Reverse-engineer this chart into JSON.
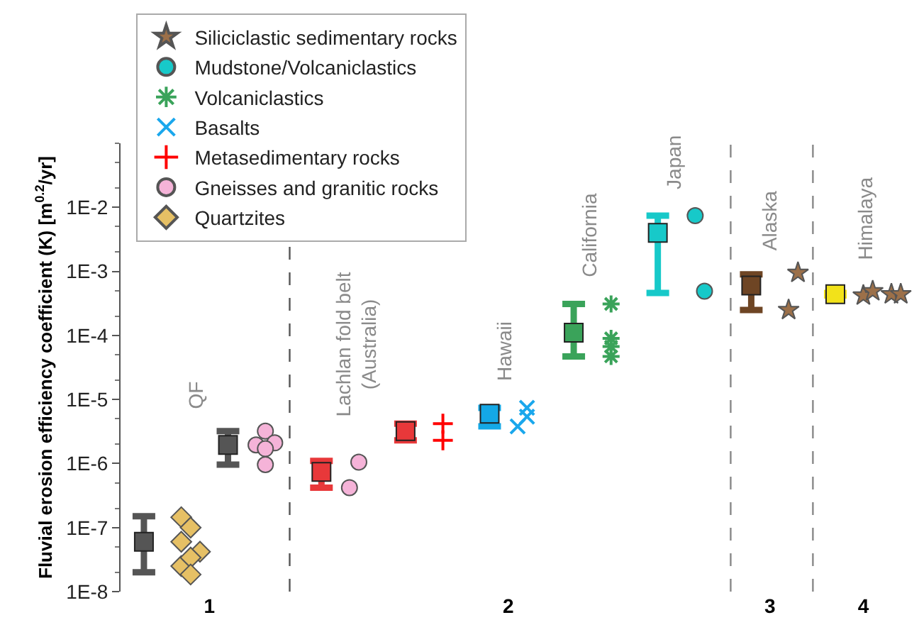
{
  "chart_data": {
    "type": "scatter",
    "ylabel": "Fluvial erosion efficiency coefficient (K) [m$^{0.2}$/yr]",
    "log": "y",
    "grid": false,
    "legend": "top left",
    "categories": [
      null,
      null,
      null,
      null,
      null,
      null,
      null,
      null,
      null,
      "1",
      null,
      null,
      null,
      null,
      null,
      null,
      null,
      null,
      null,
      null,
      null,
      null,
      null,
      null,
      null,
      null,
      null,
      null,
      null,
      null,
      null,
      null,
      null,
      null,
      null,
      null,
      null,
      null,
      null,
      null,
      null,
      "2",
      null,
      null,
      null,
      null,
      null,
      null,
      null,
      null,
      null,
      null,
      null,
      null,
      null,
      null,
      null,
      null,
      null,
      null,
      null,
      null,
      null,
      null,
      null,
      null,
      null,
      null,
      null,
      "3",
      null,
      null,
      null,
      null,
      null,
      null,
      null,
      null,
      null,
      "4",
      null,
      null,
      null,
      null,
      null
    ],
    "ylim": [
      1e-08,
      0.1
    ],
    "yticks": [
      {
        "value": 1e-08,
        "label": "1E-8"
      },
      {
        "value": 1e-07,
        "label": "1E-7"
      },
      {
        "value": 1e-06,
        "label": "1E-6"
      },
      {
        "value": 1e-05,
        "label": "1E-5"
      },
      {
        "value": 0.0001,
        "label": "1E-4"
      },
      {
        "value": 0.001,
        "label": "1E-3"
      },
      {
        "value": 0.01,
        "label": "1E-2"
      }
    ],
    "annotations": [
      "QF",
      "Lachlan fold belt\n(Australia)",
      "Hawaii",
      "California",
      "Japan",
      "Alaska",
      "Himalaya"
    ],
    "series": [
      {
        "name": "Siliciclastic sedimentary rocks",
        "color": "#9c7049",
        "marker": "star",
        "values": [
          null,
          null,
          null,
          null,
          null,
          null,
          null,
          null,
          null,
          null,
          null,
          null,
          null,
          null,
          null,
          null,
          null,
          null,
          null,
          null,
          null,
          null,
          null,
          null,
          null,
          null,
          null,
          null,
          null,
          null,
          null,
          null,
          null,
          null,
          null,
          null,
          null,
          null,
          null,
          null,
          null,
          null,
          null,
          null,
          null,
          null,
          null,
          null,
          null,
          null,
          null,
          null,
          null,
          null,
          null,
          null,
          null,
          null,
          null,
          null,
          null,
          null,
          null,
          null,
          null,
          null,
          null,
          null,
          null,
          null,
          null,
          0.00025,
          0.00095,
          null,
          null,
          null,
          null,
          null,
          null,
          0.00042,
          0.00049,
          null,
          0.00044,
          0.00044,
          null
        ]
      },
      {
        "name": "Mudstone/Volcaniclastics",
        "color": "#17c9c9",
        "marker": "circle",
        "values": [
          null,
          null,
          null,
          null,
          null,
          null,
          null,
          null,
          null,
          null,
          null,
          null,
          null,
          null,
          null,
          null,
          null,
          null,
          null,
          null,
          null,
          null,
          null,
          null,
          null,
          null,
          null,
          null,
          null,
          null,
          null,
          null,
          null,
          null,
          null,
          null,
          null,
          null,
          null,
          null,
          null,
          null,
          null,
          null,
          null,
          null,
          null,
          null,
          null,
          null,
          null,
          null,
          null,
          null,
          null,
          null,
          null,
          null,
          null,
          null,
          null,
          0.0074,
          0.00049,
          null,
          null,
          null,
          null,
          null,
          null,
          null,
          null,
          null,
          null,
          null,
          null,
          null,
          null,
          null,
          null,
          null,
          null,
          null,
          null,
          null,
          null
        ]
      },
      {
        "name": "Volcaniclastics",
        "color": "#3aa35a",
        "marker": "cross",
        "values": [
          null,
          null,
          null,
          null,
          null,
          null,
          null,
          null,
          null,
          null,
          null,
          null,
          null,
          null,
          null,
          null,
          null,
          null,
          null,
          null,
          null,
          null,
          null,
          null,
          null,
          null,
          null,
          null,
          null,
          null,
          null,
          null,
          null,
          null,
          null,
          null,
          null,
          null,
          null,
          null,
          null,
          null,
          null,
          null,
          null,
          null,
          null,
          null,
          null,
          null,
          null,
          null,
          0.00031,
          null,
          null,
          null,
          null,
          null,
          null,
          null,
          null,
          null,
          null,
          null,
          null,
          null,
          null,
          null,
          null,
          null,
          null,
          null,
          null,
          null,
          null,
          null,
          null,
          null,
          null,
          null,
          null,
          null,
          null,
          null,
          null
        ]
      },
      {
        "color": "#3aa35a",
        "marker": "cross",
        "values": [
          null,
          null,
          null,
          null,
          null,
          null,
          null,
          null,
          null,
          null,
          null,
          null,
          null,
          null,
          null,
          null,
          null,
          null,
          null,
          null,
          null,
          null,
          null,
          null,
          null,
          null,
          null,
          null,
          null,
          null,
          null,
          null,
          null,
          null,
          null,
          null,
          null,
          null,
          null,
          null,
          null,
          null,
          null,
          null,
          null,
          null,
          null,
          null,
          null,
          null,
          null,
          null,
          9e-05,
          null,
          null,
          null,
          null,
          null,
          null,
          null,
          null,
          null,
          null,
          null,
          null,
          null,
          null,
          null,
          null,
          null,
          null,
          null,
          null,
          null,
          null,
          null,
          null,
          null,
          null,
          null,
          null,
          null,
          null,
          null,
          null
        ]
      },
      {
        "color": "#3aa35a",
        "marker": "cross",
        "values": [
          null,
          null,
          null,
          null,
          null,
          null,
          null,
          null,
          null,
          null,
          null,
          null,
          null,
          null,
          null,
          null,
          null,
          null,
          null,
          null,
          null,
          null,
          null,
          null,
          null,
          null,
          null,
          null,
          null,
          null,
          null,
          null,
          null,
          null,
          null,
          null,
          null,
          null,
          null,
          null,
          null,
          null,
          null,
          null,
          null,
          null,
          null,
          null,
          null,
          null,
          null,
          null,
          6.7e-05,
          null,
          null,
          null,
          null,
          null,
          null,
          null,
          null,
          null,
          null,
          null,
          null,
          null,
          null,
          null,
          null,
          null,
          null,
          null,
          null,
          null,
          null,
          null,
          null,
          null,
          null,
          null,
          null,
          null,
          null,
          null,
          null
        ]
      },
      {
        "color": "#3aa35a",
        "marker": "cross",
        "values": [
          null,
          null,
          null,
          null,
          null,
          null,
          null,
          null,
          null,
          null,
          null,
          null,
          null,
          null,
          null,
          null,
          null,
          null,
          null,
          null,
          null,
          null,
          null,
          null,
          null,
          null,
          null,
          null,
          null,
          null,
          null,
          null,
          null,
          null,
          null,
          null,
          null,
          null,
          null,
          null,
          null,
          null,
          null,
          null,
          null,
          null,
          null,
          null,
          null,
          null,
          null,
          null,
          4.7e-05,
          null,
          null,
          null,
          null,
          null,
          null,
          null,
          null,
          null,
          null,
          null,
          null,
          null,
          null,
          null,
          null,
          null,
          null,
          null,
          null,
          null,
          null,
          null,
          null,
          null,
          null,
          null,
          null,
          null,
          null,
          null,
          null
        ]
      },
      {
        "name": "Basalts",
        "color": "#1aa7ec",
        "marker": "x",
        "values": [
          null,
          null,
          null,
          null,
          null,
          null,
          null,
          null,
          null,
          null,
          null,
          null,
          null,
          null,
          null,
          null,
          null,
          null,
          null,
          null,
          null,
          null,
          null,
          null,
          null,
          null,
          null,
          null,
          null,
          null,
          null,
          null,
          null,
          null,
          null,
          null,
          null,
          null,
          null,
          null,
          null,
          null,
          3.8e-06,
          7.4e-06,
          null,
          null,
          null,
          null,
          null,
          null,
          null,
          null,
          null,
          null,
          null,
          null,
          null,
          null,
          null,
          null,
          null,
          null,
          null,
          null,
          null,
          null,
          null,
          null,
          null,
          null,
          null,
          null,
          null,
          null,
          null,
          null,
          null,
          null,
          null,
          null,
          null,
          null,
          null,
          null,
          null
        ]
      },
      {
        "color": "#1aa7ec",
        "marker": "x",
        "values": [
          null,
          null,
          null,
          null,
          null,
          null,
          null,
          null,
          null,
          null,
          null,
          null,
          null,
          null,
          null,
          null,
          null,
          null,
          null,
          null,
          null,
          null,
          null,
          null,
          null,
          null,
          null,
          null,
          null,
          null,
          null,
          null,
          null,
          null,
          null,
          null,
          null,
          null,
          null,
          null,
          null,
          null,
          null,
          5.4e-06,
          null,
          null,
          null,
          null,
          null,
          null,
          null,
          null,
          null,
          null,
          null,
          null,
          null,
          null,
          null,
          null,
          null,
          null,
          null,
          null,
          null,
          null,
          null,
          null,
          null,
          null,
          null,
          null,
          null,
          null,
          null,
          null,
          null,
          null,
          null,
          null,
          null,
          null,
          null,
          null,
          null
        ]
      },
      {
        "name": "Metasedimentary rocks",
        "color": "#ff0000",
        "marker": "plus",
        "values": [
          null,
          null,
          null,
          null,
          null,
          null,
          null,
          null,
          null,
          null,
          null,
          null,
          null,
          null,
          null,
          null,
          null,
          null,
          null,
          null,
          null,
          null,
          null,
          null,
          null,
          null,
          null,
          null,
          null,
          null,
          null,
          null,
          null,
          null,
          4.2e-06,
          null,
          null,
          null,
          null,
          null,
          null,
          null,
          null,
          null,
          null,
          null,
          null,
          null,
          null,
          null,
          null,
          null,
          null,
          null,
          null,
          null,
          null,
          null,
          null,
          null,
          null,
          null,
          null,
          null,
          null,
          null,
          null,
          null,
          null,
          null,
          null,
          null,
          null,
          null,
          null,
          null,
          null,
          null,
          null,
          null,
          null,
          null,
          null,
          null,
          null
        ]
      },
      {
        "color": "#ff0000",
        "marker": "plus",
        "values": [
          null,
          null,
          null,
          null,
          null,
          null,
          null,
          null,
          null,
          null,
          null,
          null,
          null,
          null,
          null,
          null,
          null,
          null,
          null,
          null,
          null,
          null,
          null,
          null,
          null,
          null,
          null,
          null,
          null,
          null,
          null,
          null,
          null,
          null,
          2.3e-06,
          null,
          null,
          null,
          null,
          null,
          null,
          null,
          null,
          null,
          null,
          null,
          null,
          null,
          null,
          null,
          null,
          null,
          null,
          null,
          null,
          null,
          null,
          null,
          null,
          null,
          null,
          null,
          null,
          null,
          null,
          null,
          null,
          null,
          null,
          null,
          null,
          null,
          null,
          null,
          null,
          null,
          null,
          null,
          null,
          null,
          null,
          null,
          null,
          null,
          null
        ]
      },
      {
        "name": "Gneisses and granitic rocks",
        "color": "#f5b3d8",
        "marker": "circle",
        "values": [
          null,
          null,
          null,
          null,
          null,
          null,
          null,
          null,
          null,
          null,
          null,
          null,
          null,
          null,
          1.95e-06,
          3.2e-06,
          2.1e-06,
          null,
          null,
          null,
          null,
          null,
          null,
          null,
          4.2e-07,
          1.05e-06,
          null,
          null,
          null,
          null,
          null,
          null,
          null,
          null,
          null,
          null,
          null,
          null,
          null,
          null,
          null,
          null,
          null,
          null,
          null,
          null,
          null,
          null,
          null,
          null,
          null,
          null,
          null,
          null,
          null,
          null,
          null,
          null,
          null,
          null,
          null,
          null,
          null,
          null,
          null,
          null,
          null,
          null,
          null,
          null,
          null,
          null,
          null,
          null,
          null,
          null,
          null,
          null,
          null,
          null,
          null,
          null,
          null,
          null,
          null
        ]
      },
      {
        "color": "#f5b3d8",
        "marker": "circle",
        "values": [
          null,
          null,
          null,
          null,
          null,
          null,
          null,
          null,
          null,
          null,
          null,
          null,
          null,
          null,
          null,
          1.7e-06,
          null,
          null,
          null,
          null,
          null,
          null,
          null,
          null,
          null,
          null,
          null,
          null,
          null,
          null,
          null,
          null,
          null,
          null,
          null,
          null,
          null,
          null,
          null,
          null,
          null,
          null,
          null,
          null,
          null,
          null,
          null,
          null,
          null,
          null,
          null,
          null,
          null,
          null,
          null,
          null,
          null,
          null,
          null,
          null,
          null,
          null,
          null,
          null,
          null,
          null,
          null,
          null,
          null,
          null,
          null,
          null,
          null,
          null,
          null,
          null,
          null,
          null,
          null,
          null,
          null,
          null,
          null,
          null,
          null
        ]
      },
      {
        "color": "#f5b3d8",
        "marker": "circle",
        "values": [
          null,
          null,
          null,
          null,
          null,
          null,
          null,
          null,
          null,
          null,
          null,
          null,
          null,
          null,
          null,
          9.6e-07,
          null,
          null,
          null,
          null,
          null,
          null,
          null,
          null,
          null,
          null,
          null,
          null,
          null,
          null,
          null,
          null,
          null,
          null,
          null,
          null,
          null,
          null,
          null,
          null,
          null,
          null,
          null,
          null,
          null,
          null,
          null,
          null,
          null,
          null,
          null,
          null,
          null,
          null,
          null,
          null,
          null,
          null,
          null,
          null,
          null,
          null,
          null,
          null,
          null,
          null,
          null,
          null,
          null,
          null,
          null,
          null,
          null,
          null,
          null,
          null,
          null,
          null,
          null,
          null,
          null,
          null,
          null,
          null,
          null
        ]
      },
      {
        "name": "Quartzites",
        "color": "#e6c065",
        "marker": "diamond",
        "values": [
          null,
          null,
          null,
          null,
          null,
          null,
          1.45e-07,
          null,
          4.2e-08,
          null,
          null,
          null,
          null,
          null,
          null,
          null,
          null,
          null,
          null,
          null,
          null,
          null,
          null,
          null,
          null,
          null,
          null,
          null,
          null,
          null,
          null,
          null,
          null,
          null,
          null,
          null,
          null,
          null,
          null,
          null,
          null,
          null,
          null,
          null,
          null,
          null,
          null,
          null,
          null,
          null,
          null,
          null,
          null,
          null,
          null,
          null,
          null,
          null,
          null,
          null,
          null,
          null,
          null,
          null,
          null,
          null,
          null,
          null,
          null,
          null,
          null,
          null,
          null,
          null,
          null,
          null,
          null,
          null,
          null,
          null,
          null,
          null,
          null,
          null,
          null
        ]
      },
      {
        "color": "#e6c065",
        "marker": "diamond",
        "values": [
          null,
          null,
          null,
          null,
          null,
          null,
          6e-08,
          1e-07,
          null,
          null,
          null,
          null,
          null,
          null,
          null,
          null,
          null,
          null,
          null,
          null,
          null,
          null,
          null,
          null,
          null,
          null,
          null,
          null,
          null,
          null,
          null,
          null,
          null,
          null,
          null,
          null,
          null,
          null,
          null,
          null,
          null,
          null,
          null,
          null,
          null,
          null,
          null,
          null,
          null,
          null,
          null,
          null,
          null,
          null,
          null,
          null,
          null,
          null,
          null,
          null,
          null,
          null,
          null,
          null,
          null,
          null,
          null,
          null,
          null,
          null,
          null,
          null,
          null,
          null,
          null,
          null,
          null,
          null,
          null,
          null,
          null,
          null,
          null,
          null,
          null
        ]
      },
      {
        "color": "#e6c065",
        "marker": "diamond",
        "values": [
          null,
          null,
          null,
          null,
          null,
          null,
          2.5e-08,
          3.4e-08,
          null,
          null,
          null,
          null,
          null,
          null,
          null,
          null,
          null,
          null,
          null,
          null,
          null,
          null,
          null,
          null,
          null,
          null,
          null,
          null,
          null,
          null,
          null,
          null,
          null,
          null,
          null,
          null,
          null,
          null,
          null,
          null,
          null,
          null,
          null,
          null,
          null,
          null,
          null,
          null,
          null,
          null,
          null,
          null,
          null,
          null,
          null,
          null,
          null,
          null,
          null,
          null,
          null,
          null,
          null,
          null,
          null,
          null,
          null,
          null,
          null,
          null,
          null,
          null,
          null,
          null,
          null,
          null,
          null,
          null,
          null,
          null,
          null,
          null,
          null,
          null,
          null
        ]
      },
      {
        "color": "#e6c065",
        "marker": "diamond",
        "values": [
          null,
          null,
          null,
          null,
          null,
          null,
          null,
          1.85e-08,
          null,
          null,
          null,
          null,
          null,
          null,
          null,
          null,
          null,
          null,
          null,
          null,
          null,
          null,
          null,
          null,
          null,
          null,
          null,
          null,
          null,
          null,
          null,
          null,
          null,
          null,
          null,
          null,
          null,
          null,
          null,
          null,
          null,
          null,
          null,
          null,
          null,
          null,
          null,
          null,
          null,
          null,
          null,
          null,
          null,
          null,
          null,
          null,
          null,
          null,
          null,
          null,
          null,
          null,
          null,
          null,
          null,
          null,
          null,
          null,
          null,
          null,
          null,
          null,
          null,
          null,
          null,
          null,
          null,
          null,
          null,
          null,
          null,
          null,
          null,
          null,
          null
        ]
      },
      {
        "marker": "square",
        "values": [
          null,
          null,
          6e-08,
          null,
          null,
          null,
          null,
          null,
          null,
          null,
          null,
          1.95e-06,
          null,
          null,
          null,
          null,
          null,
          null,
          null,
          null,
          null,
          7.4e-07,
          null,
          null,
          null,
          null,
          null,
          null,
          null,
          null,
          3.2e-06,
          null,
          null,
          null,
          null,
          null,
          null,
          null,
          null,
          6e-06,
          null,
          null,
          null,
          null,
          null,
          null,
          null,
          null,
          0.00011,
          null,
          null,
          null,
          null,
          null,
          null,
          null,
          null,
          0.004,
          null,
          null,
          null,
          null,
          null,
          null,
          null,
          null,
          null,
          0.0006,
          null,
          null,
          null,
          null,
          null,
          null,
          null,
          null,
          0.00044,
          null,
          null,
          null,
          null,
          null,
          null,
          null,
          null
        ],
        "errors": [
          null,
          null,
          [
            2e-08,
            1.5e-07
          ],
          null,
          null,
          null,
          null,
          null,
          null,
          null,
          null,
          [
            9.6e-07,
            3.2e-06
          ],
          null,
          null,
          null,
          null,
          null,
          null,
          null,
          null,
          null,
          [
            4.2e-07,
            1.1e-06
          ],
          null,
          null,
          null,
          null,
          null,
          null,
          null,
          null,
          [
            2.3e-06,
            4.2e-06
          ],
          null,
          null,
          null,
          null,
          null,
          null,
          null,
          null,
          [
            3.8e-06,
            7.4e-06
          ],
          null,
          null,
          null,
          null,
          null,
          null,
          null,
          null,
          [
            4.7e-05,
            0.00031
          ],
          null,
          null,
          null,
          null,
          null,
          null,
          null,
          null,
          [
            0.00046,
            0.0074
          ],
          null,
          null,
          null,
          null,
          null,
          null,
          null,
          null,
          null,
          [
            0.00025,
            0.0009
          ],
          null,
          null,
          null,
          null,
          null,
          null,
          null,
          null,
          [
            0.00042,
            0.00046
          ],
          null,
          null,
          null,
          null,
          null,
          null,
          null,
          null
        ],
        "colors": [
          null,
          null,
          "#555555",
          null,
          null,
          null,
          null,
          null,
          null,
          null,
          null,
          "#555555",
          null,
          null,
          null,
          null,
          null,
          null,
          null,
          null,
          null,
          "#e8383a",
          null,
          null,
          null,
          null,
          null,
          null,
          null,
          null,
          "#e8383a",
          null,
          null,
          null,
          null,
          null,
          null,
          null,
          null,
          "#14a8e6",
          null,
          null,
          null,
          null,
          null,
          null,
          null,
          null,
          "#3aa35a",
          null,
          null,
          null,
          null,
          null,
          null,
          null,
          null,
          "#17c9c9",
          null,
          null,
          null,
          null,
          null,
          null,
          null,
          null,
          null,
          "#6e4524",
          null,
          null,
          null,
          null,
          null,
          null,
          null,
          null,
          "#f2e21a",
          null,
          null,
          null,
          null,
          null,
          null,
          null,
          null
        ]
      }
    ]
  }
}
